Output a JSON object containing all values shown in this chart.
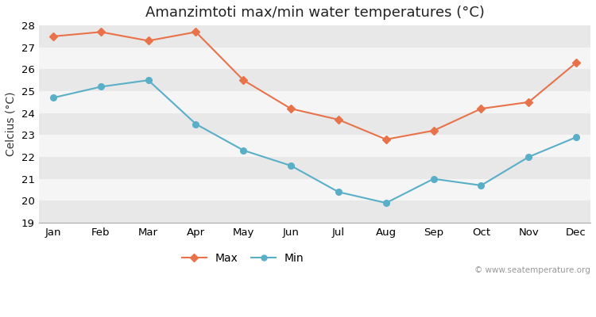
{
  "title": "Amanzimtoti max/min water temperatures (°C)",
  "ylabel": "Celcius (°C)",
  "months": [
    "Jan",
    "Feb",
    "Mar",
    "Apr",
    "May",
    "Jun",
    "Jul",
    "Aug",
    "Sep",
    "Oct",
    "Nov",
    "Dec"
  ],
  "max_values": [
    27.5,
    27.7,
    27.3,
    27.7,
    25.5,
    24.2,
    23.7,
    22.8,
    23.2,
    24.2,
    24.5,
    26.3
  ],
  "min_values": [
    24.7,
    25.2,
    25.5,
    23.5,
    22.3,
    21.6,
    20.4,
    19.9,
    21.0,
    20.7,
    22.0,
    22.9
  ],
  "max_color": "#e8724a",
  "min_color": "#5aafc8",
  "bg_color": "#ffffff",
  "band_colors": [
    "#e8e8e8",
    "#f5f5f5"
  ],
  "ylim": [
    19,
    28
  ],
  "yticks": [
    19,
    20,
    21,
    22,
    23,
    24,
    25,
    26,
    27,
    28
  ],
  "watermark": "© www.seatemperature.org",
  "title_fontsize": 13,
  "label_fontsize": 10,
  "tick_fontsize": 9.5
}
